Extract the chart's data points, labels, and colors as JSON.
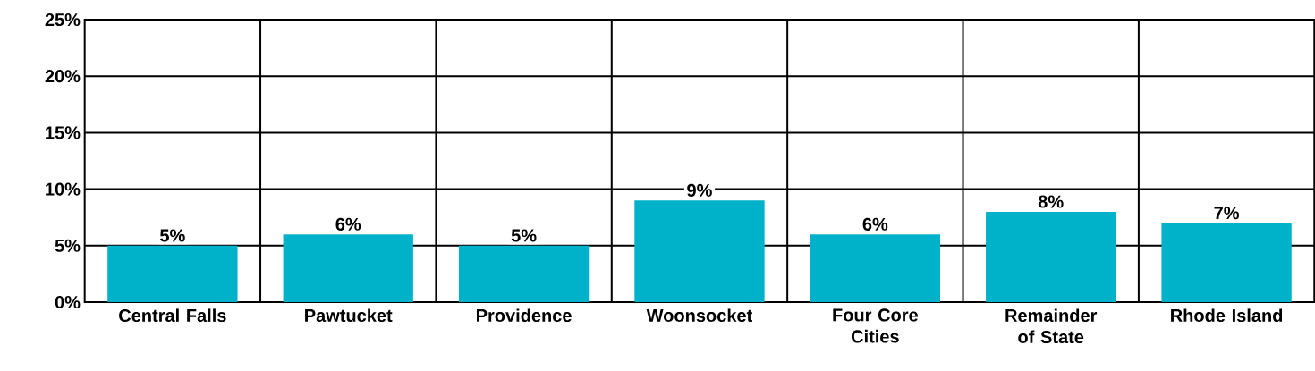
{
  "chart_data": {
    "type": "bar",
    "categories": [
      "Central Falls",
      "Pawtucket",
      "Providence",
      "Woonsocket",
      "Four Core Cities",
      "Remainder of State",
      "Rhode Island"
    ],
    "values": [
      5,
      6,
      5,
      9,
      6,
      8,
      7
    ],
    "value_labels": [
      "5%",
      "6%",
      "5%",
      "9%",
      "6%",
      "8%",
      "7%"
    ],
    "color": "#00b2c9",
    "ylim": [
      0,
      25
    ],
    "yticks": [
      {
        "value": 0,
        "label": "0%"
      },
      {
        "value": 5,
        "label": "5%"
      },
      {
        "value": 10,
        "label": "10%"
      },
      {
        "value": 15,
        "label": "15%"
      },
      {
        "value": 20,
        "label": "20%"
      },
      {
        "value": 25,
        "label": "25%"
      }
    ],
    "grid": true
  }
}
